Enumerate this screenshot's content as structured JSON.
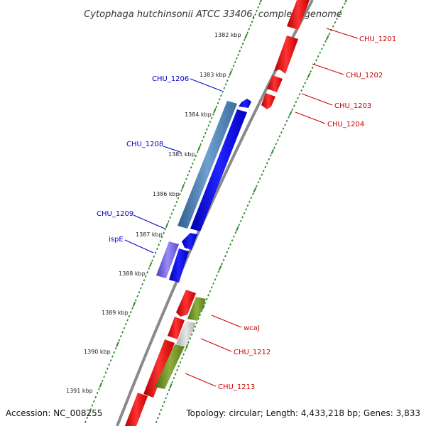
{
  "title": "Cytophaga hutchinsonii ATCC 33406, complete genome",
  "footer": {
    "accession": "Accession: NC_008255",
    "summary": "Topology: circular; Length: 4,433,218 bp; Genes: 3,833"
  },
  "colors": {
    "backbone": "#8a8a8a",
    "tick_scale": "#2e8b2e",
    "forward_gene": "#ee1111",
    "reverse_gene": "#1111ee",
    "reverse_label": "#0000cc",
    "forward_label": "#cc0000",
    "rna_reverse": "#4682b4",
    "rna_forward": "#6b8e23",
    "purple_gene": "#7b68ee",
    "pseudo": "#cccccc"
  },
  "ticks": [
    {
      "label": "1382 kbp"
    },
    {
      "label": "1383 kbp"
    },
    {
      "label": "1384 kbp"
    },
    {
      "label": "1385 kbp"
    },
    {
      "label": "1386 kbp"
    },
    {
      "label": "1387 kbp"
    },
    {
      "label": "1388 kbp"
    },
    {
      "label": "1389 kbp"
    },
    {
      "label": "1390 kbp"
    },
    {
      "label": "1391 kbp"
    }
  ],
  "gene_labels_reverse": [
    "CHU_1206",
    "CHU_1208",
    "CHU_1209",
    "ispE"
  ],
  "gene_labels_forward": [
    "CHU_1201",
    "CHU_1202",
    "CHU_1203",
    "CHU_1204",
    "wcaJ",
    "CHU_1212",
    "CHU_1213"
  ]
}
